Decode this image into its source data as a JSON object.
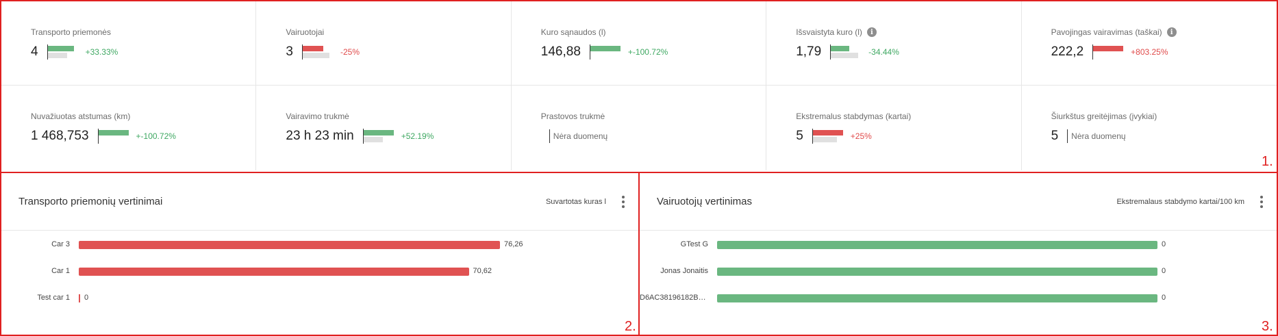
{
  "kpis": [
    {
      "title": "Transporto priemonės",
      "value": "4",
      "change": "+33.33%",
      "trend": "pos",
      "cur": 0.8,
      "prev": 0.6,
      "info": false
    },
    {
      "title": "Vairuotojai",
      "value": "3",
      "change": "-25%",
      "trend": "neg",
      "cur": 0.62,
      "prev": 0.82,
      "info": false
    },
    {
      "title": "Kuro sąnaudos (l)",
      "value": "146,88",
      "change": "+-100.72%",
      "trend": "pos",
      "cur": 0.92,
      "prev": 0.0,
      "info": false
    },
    {
      "title": "Išsvaistyta kuro (l)",
      "value": "1,79",
      "change": "-34.44%",
      "trend": "pos",
      "cur": 0.56,
      "prev": 0.82,
      "info": true
    },
    {
      "title": "Pavojingas vairavimas (taškai)",
      "value": "222,2",
      "change": "+803.25%",
      "trend": "neg",
      "cur": 0.92,
      "prev": 0.0,
      "info": true
    },
    {
      "title": "Nuvažiuotas atstumas (km)",
      "value": "1 468,753",
      "change": "+-100.72%",
      "trend": "pos",
      "cur": 0.92,
      "prev": 0.0,
      "info": false
    },
    {
      "title": "Vairavimo trukmė",
      "value": "23 h 23 min",
      "change": "+52.19%",
      "trend": "pos",
      "cur": 0.92,
      "prev": 0.6,
      "info": false
    },
    {
      "title": "Prastovos trukmė",
      "value": "",
      "nodata": "Nėra duomenų",
      "info": false
    },
    {
      "title": "Ekstremalus stabdymas (kartai)",
      "value": "5",
      "change": "+25%",
      "trend": "neg",
      "cur": 0.92,
      "prev": 0.74,
      "info": false
    },
    {
      "title": "Šiurkštus greitėjimas (įvykiai)",
      "value": "5",
      "nodata": "Nėra duomenų",
      "info": false
    }
  ],
  "colors": {
    "positive": "#6ab780",
    "negative": "#e05252"
  },
  "panels": [
    {
      "id": "panel2",
      "title": "Transporto priemonių vertinimai",
      "metric": "Suvartotas kuras l",
      "bar_color": "#e05252",
      "max": 76.26,
      "rows": [
        {
          "label": "Car 3",
          "value": 76.26,
          "display": "76,26"
        },
        {
          "label": "Car 1",
          "value": 70.62,
          "display": "70,62"
        },
        {
          "label": "Test car 1",
          "value": 0,
          "display": "0"
        }
      ]
    },
    {
      "id": "panel3",
      "title": "Vairuotojų vertinimas",
      "metric": "Ekstremalaus stabdymo kartai/100 km",
      "bar_color": "#6ab780",
      "max": 0,
      "rows": [
        {
          "label": "GTest G",
          "value": 0,
          "display": "0",
          "full": true
        },
        {
          "label": "Jonas Jonaitis",
          "value": 0,
          "display": "0",
          "full": true
        },
        {
          "label": "D6AC38196182BC...",
          "value": 0,
          "display": "0",
          "full": true
        }
      ]
    }
  ],
  "annotations": [
    "1.",
    "2.",
    "3."
  ]
}
